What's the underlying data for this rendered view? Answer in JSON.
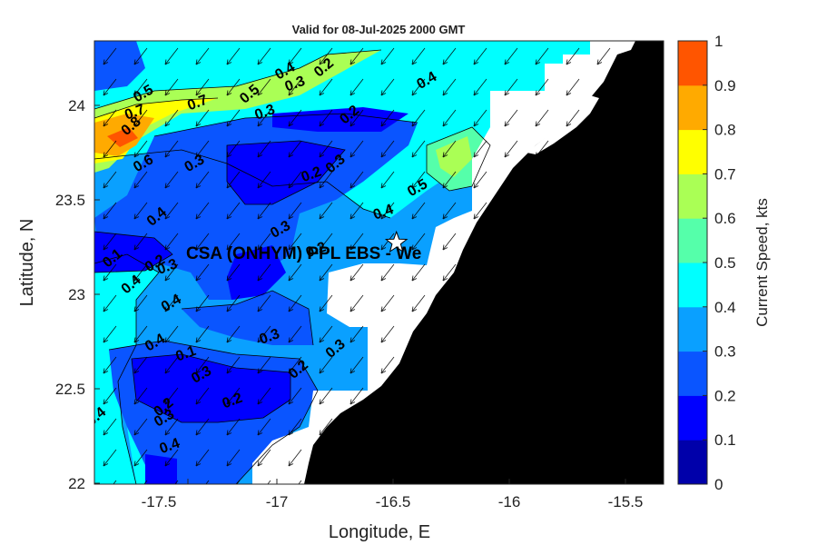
{
  "title": "Valid for 08-Jul-2025 2000 GMT",
  "x_axis": {
    "label": "Longitude, E",
    "ticks": [
      -17.5,
      -17,
      -16.5,
      -16,
      -15.5
    ],
    "tick_labels": [
      "-17.5",
      "-17",
      "-16.5",
      "-16",
      "-15.5"
    ],
    "range": [
      -17.8,
      -15.35
    ]
  },
  "y_axis": {
    "label": "Latitude, N",
    "ticks": [
      22,
      22.5,
      23,
      23.5,
      24
    ],
    "tick_labels": [
      "22",
      "22.5",
      "23",
      "23.5",
      "24"
    ],
    "range": [
      22,
      24.35
    ]
  },
  "colorbar": {
    "label": "Current Speed, kts",
    "tick_labels": [
      "0",
      "0.1",
      "0.2",
      "0.3",
      "0.4",
      "0.5",
      "0.6",
      "0.7",
      "0.8",
      "0.9",
      "1"
    ],
    "colors": [
      "#0000aa",
      "#0000ff",
      "#0a55ff",
      "#0aa0ff",
      "#00ffff",
      "#55ffaa",
      "#aaff55",
      "#ffff00",
      "#ffaa00",
      "#ff5500"
    ]
  },
  "site": {
    "label": "CSA (ONHYM) PPL EBS - We",
    "lon": -16.5,
    "lat": 23.28
  },
  "chart_data": {
    "type": "heatmap",
    "title": "Valid for 08-Jul-2025 2000 GMT",
    "xlabel": "Longitude, E",
    "ylabel": "Latitude, N",
    "xlim": [
      -17.8,
      -15.35
    ],
    "ylim": [
      22,
      24.35
    ],
    "colorbar_label": "Current Speed, kts",
    "colorbar_range": [
      0,
      1
    ],
    "levels": [
      0,
      0.1,
      0.2,
      0.3,
      0.4,
      0.5,
      0.6,
      0.7,
      0.8,
      0.9,
      1
    ],
    "land_color": "#000000",
    "no_data_color": "#ffffff",
    "current_direction": "southwest",
    "contour_labels": [
      {
        "text": "0.5",
        "lon": -17.58,
        "lat": 24.05
      },
      {
        "text": "0.7",
        "lon": -17.62,
        "lat": 23.95
      },
      {
        "text": "0.8",
        "lon": -17.63,
        "lat": 23.88
      },
      {
        "text": "0.6",
        "lon": -17.58,
        "lat": 23.68
      },
      {
        "text": "0.7",
        "lon": -17.35,
        "lat": 24.0
      },
      {
        "text": "0.5",
        "lon": -17.12,
        "lat": 24.05
      },
      {
        "text": "0.4",
        "lon": -16.97,
        "lat": 24.17
      },
      {
        "text": "0.3",
        "lon": -16.93,
        "lat": 24.1
      },
      {
        "text": "0.2",
        "lon": -16.8,
        "lat": 24.19
      },
      {
        "text": "0.4",
        "lon": -16.36,
        "lat": 24.12
      },
      {
        "text": "0.3",
        "lon": -17.06,
        "lat": 23.95
      },
      {
        "text": "0.2",
        "lon": -16.69,
        "lat": 23.94
      },
      {
        "text": "0.3",
        "lon": -17.36,
        "lat": 23.68
      },
      {
        "text": "0.2",
        "lon": -16.86,
        "lat": 23.62
      },
      {
        "text": "0.3",
        "lon": -16.75,
        "lat": 23.68
      },
      {
        "text": "0.5",
        "lon": -16.4,
        "lat": 23.55
      },
      {
        "text": "0.4",
        "lon": -16.55,
        "lat": 23.42
      },
      {
        "text": "0.4",
        "lon": -17.52,
        "lat": 23.4
      },
      {
        "text": "0.3",
        "lon": -16.99,
        "lat": 23.33
      },
      {
        "text": "0.2",
        "lon": -16.84,
        "lat": 23.22
      },
      {
        "text": "0.1",
        "lon": -17.71,
        "lat": 23.18
      },
      {
        "text": "0.2",
        "lon": -17.53,
        "lat": 23.15
      },
      {
        "text": "0.3",
        "lon": -17.48,
        "lat": 23.13
      },
      {
        "text": "0.4",
        "lon": -17.63,
        "lat": 23.04
      },
      {
        "text": "0.4",
        "lon": -17.46,
        "lat": 22.94
      },
      {
        "text": "0.3",
        "lon": -17.04,
        "lat": 22.76
      },
      {
        "text": "0.3",
        "lon": -16.75,
        "lat": 22.7
      },
      {
        "text": "0.4",
        "lon": -17.53,
        "lat": 22.73
      },
      {
        "text": "0.1",
        "lon": -17.4,
        "lat": 22.67
      },
      {
        "text": "0.2",
        "lon": -16.91,
        "lat": 22.59
      },
      {
        "text": "0.3",
        "lon": -17.33,
        "lat": 22.56
      },
      {
        "text": "0.2",
        "lon": -17.2,
        "lat": 22.42
      },
      {
        "text": "0.2",
        "lon": -17.49,
        "lat": 22.39
      },
      {
        "text": "0.3",
        "lon": -17.49,
        "lat": 22.33
      },
      {
        "text": "0.4",
        "lon": -17.47,
        "lat": 22.18
      },
      {
        "text": "0.4",
        "lon": -17.78,
        "lat": 22.34
      }
    ]
  }
}
